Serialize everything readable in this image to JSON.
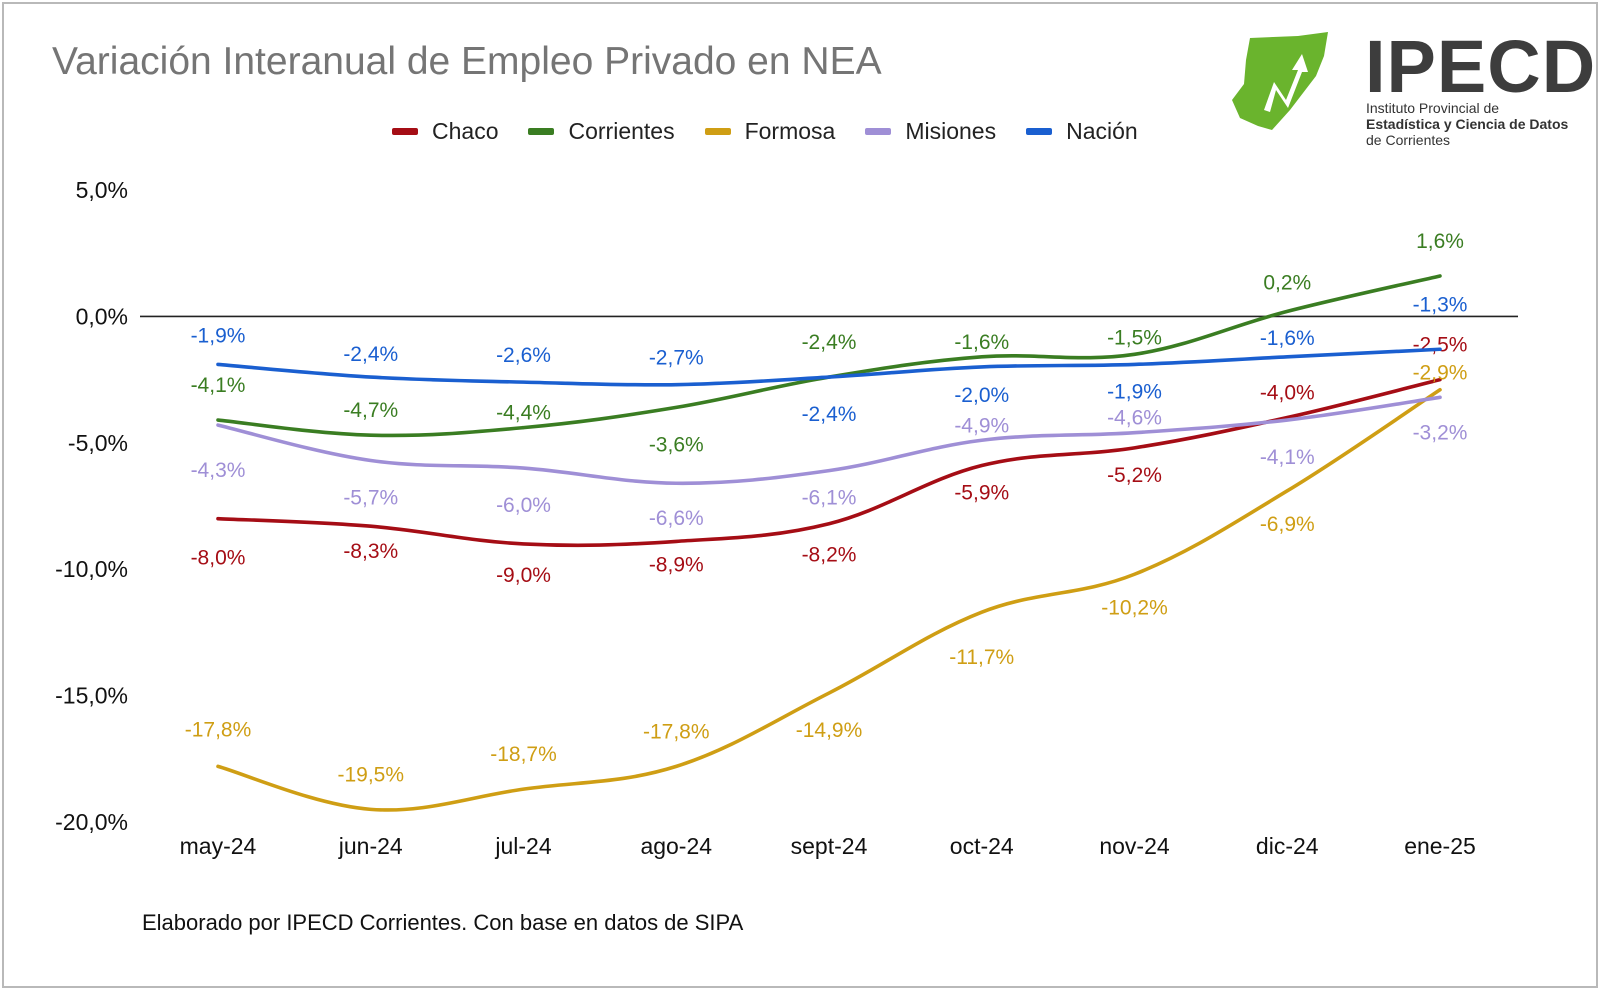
{
  "title": "Variación Interanual de Empleo Privado en NEA",
  "footer": "Elaborado por IPECD Corrientes. Con base en datos de SIPA",
  "logo": {
    "word": "IPECD",
    "line1": "Instituto Provincial de",
    "line2": "Estadística y Ciencia de Datos",
    "line3": "de Corrientes"
  },
  "colors": {
    "Chaco": "#a50d15",
    "Corrientes": "#3a7d22",
    "Formosa": "#cf9e14",
    "Misiones": "#9f8fd6",
    "Nación": "#1a5fd0",
    "logo_green": "#6ab42d"
  },
  "chart_data": {
    "type": "line",
    "categories": [
      "may-24",
      "jun-24",
      "jul-24",
      "ago-24",
      "sept-24",
      "oct-24",
      "nov-24",
      "dic-24",
      "ene-25"
    ],
    "ylim": [
      -20,
      5
    ],
    "yticks": [
      "5,0%",
      "0,0%",
      "-5,0%",
      "-10,0%",
      "-15,0%",
      "-20,0%"
    ],
    "legend_position": "top",
    "series": [
      {
        "name": "Chaco",
        "values": [
          -8.0,
          -8.3,
          -9.0,
          -8.9,
          -8.2,
          -5.9,
          -5.2,
          -4.0,
          -2.5
        ],
        "labels": [
          "-8,0%",
          "-8,3%",
          "-9,0%",
          "-8,9%",
          "-8,2%",
          "-5,9%",
          "-5,2%",
          "-4,0%",
          "-2,5%"
        ]
      },
      {
        "name": "Corrientes",
        "values": [
          -4.1,
          -4.7,
          -4.4,
          -3.6,
          -2.4,
          -1.6,
          -1.5,
          0.2,
          1.6
        ],
        "labels": [
          "-4,1%",
          "-4,7%",
          "-4,4%",
          "-3,6%",
          "-2,4%",
          "-1,6%",
          "-1,5%",
          "0,2%",
          "1,6%"
        ]
      },
      {
        "name": "Formosa",
        "values": [
          -17.8,
          -19.5,
          -18.7,
          -17.8,
          -14.9,
          -11.7,
          -10.2,
          -6.9,
          -2.9
        ],
        "labels": [
          "-17,8%",
          "-19,5%",
          "-18,7%",
          "-17,8%",
          "-14,9%",
          "-11,7%",
          "-10,2%",
          "-6,9%",
          "-2,9%"
        ]
      },
      {
        "name": "Misiones",
        "values": [
          -4.3,
          -5.7,
          -6.0,
          -6.6,
          -6.1,
          -4.9,
          -4.6,
          -4.1,
          -3.2
        ],
        "labels": [
          "-4,3%",
          "-5,7%",
          "-6,0%",
          "-6,6%",
          "-6,1%",
          "-4,9%",
          "-4,6%",
          "-4,1%",
          "-3,2%"
        ]
      },
      {
        "name": "Nación",
        "values": [
          -1.9,
          -2.4,
          -2.6,
          -2.7,
          -2.4,
          -2.0,
          -1.9,
          -1.6,
          -1.3
        ],
        "labels": [
          "-1,9%",
          "-2,4%",
          "-2,6%",
          "-2,7%",
          "-2,4%",
          "-2,0%",
          "-1,9%",
          "-1,6%",
          "-1,3%"
        ]
      }
    ]
  }
}
